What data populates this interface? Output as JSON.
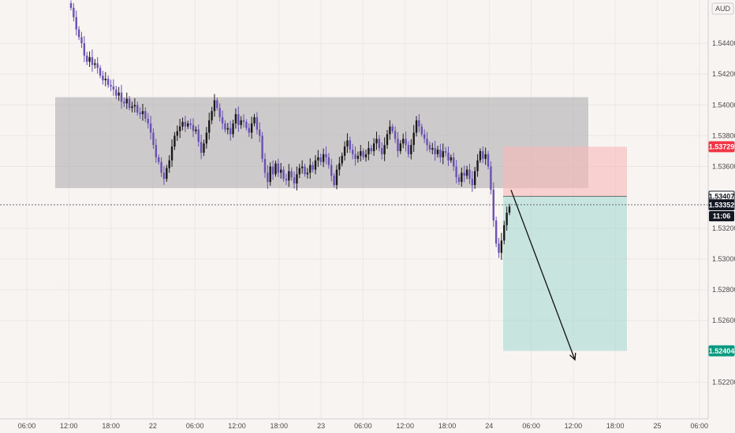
{
  "chart_data": {
    "type": "candlestick",
    "currency": "AUD",
    "time_ticks": [
      "06:00",
      "12:00",
      "18:00",
      "22",
      "06:00",
      "12:00",
      "18:00",
      "23",
      "06:00",
      "12:00",
      "18:00",
      "24",
      "06:00",
      "12:00",
      "18:00",
      "25",
      "06:00"
    ],
    "price_ticks": [
      "1.54400",
      "1.54200",
      "1.54000",
      "1.53800",
      "1.53600",
      "1.53200",
      "1.53000",
      "1.52800",
      "1.52600",
      "1.52200"
    ],
    "price_range": [
      1.5208,
      1.5463
    ],
    "range_box": {
      "top": 1.5405,
      "bottom": 1.5346
    },
    "position": {
      "type": "short",
      "entry": 1.53407,
      "stop": 1.53729,
      "target": 1.52404
    },
    "current_price": 1.53352,
    "countdown": "11:06",
    "price_tags": [
      {
        "label": "1.53729",
        "value": 1.53729,
        "bg": "#f23645",
        "fg": "#ffffff"
      },
      {
        "label": "1.53407",
        "value": 1.53407,
        "bg": "#ffffff",
        "fg": "#131722"
      },
      {
        "label": "1.53352",
        "value": 1.53352,
        "bg": "#131722",
        "fg": "#ffffff"
      },
      {
        "label": "1.52404",
        "value": 1.52404,
        "bg": "#089981",
        "fg": "#ffffff"
      }
    ],
    "closes": [
      1.5463,
      1.5457,
      1.5449,
      1.5444,
      1.544,
      1.5432,
      1.5428,
      1.5431,
      1.5426,
      1.5427,
      1.5424,
      1.5419,
      1.5416,
      1.5417,
      1.5413,
      1.5412,
      1.541,
      1.5406,
      1.5408,
      1.5402,
      1.5401,
      1.5404,
      1.5398,
      1.5399,
      1.54,
      1.5395,
      1.5394,
      1.5396,
      1.5391,
      1.5388,
      1.5382,
      1.5374,
      1.5366,
      1.5363,
      1.5356,
      1.5352,
      1.5359,
      1.5364,
      1.5373,
      1.538,
      1.5383,
      1.5386,
      1.5389,
      1.5386,
      1.5388,
      1.5387,
      1.5383,
      1.5384,
      1.5376,
      1.5369,
      1.5375,
      1.5382,
      1.539,
      1.5396,
      1.5403,
      1.5398,
      1.5392,
      1.5388,
      1.5384,
      1.5385,
      1.5381,
      1.5388,
      1.5394,
      1.5387,
      1.539,
      1.5389,
      1.5385,
      1.5382,
      1.5388,
      1.5392,
      1.5384,
      1.538,
      1.5365,
      1.5356,
      1.535,
      1.536,
      1.5355,
      1.5362,
      1.5356,
      1.5358,
      1.5352,
      1.5351,
      1.5357,
      1.5353,
      1.5349,
      1.5355,
      1.5359,
      1.536,
      1.5355,
      1.5356,
      1.5361,
      1.5358,
      1.5364,
      1.5366,
      1.5363,
      1.5368,
      1.5366,
      1.5361,
      1.5354,
      1.5348,
      1.5358,
      1.5362,
      1.5367,
      1.5373,
      1.5377,
      1.5371,
      1.5368,
      1.5365,
      1.5367,
      1.537,
      1.5366,
      1.5368,
      1.5372,
      1.537,
      1.5375,
      1.5378,
      1.5372,
      1.5368,
      1.5374,
      1.5381,
      1.5386,
      1.5383,
      1.5378,
      1.537,
      1.5375,
      1.5378,
      1.5374,
      1.5368,
      1.5374,
      1.5382,
      1.539,
      1.5386,
      1.5381,
      1.5378,
      1.5374,
      1.5371,
      1.5372,
      1.5368,
      1.5371,
      1.5366,
      1.537,
      1.5369,
      1.5364,
      1.5366,
      1.536,
      1.5353,
      1.535,
      1.5356,
      1.5354,
      1.5358,
      1.5352,
      1.5348,
      1.5357,
      1.5364,
      1.537,
      1.5365,
      1.5368,
      1.536,
      1.5345,
      1.5325,
      1.531,
      1.5304,
      1.5312,
      1.5322,
      1.533,
      1.5334
    ]
  }
}
